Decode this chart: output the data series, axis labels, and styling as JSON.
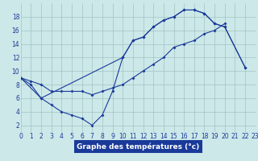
{
  "bg_color": "#cce8e8",
  "line_color": "#1a3a9a",
  "grid_color": "#99bbbb",
  "xlabel": "Graphe des températures (°c)",
  "xlabel_bg": "#1a3a9a",
  "xlabel_color": "#ffffff",
  "xlim": [
    0,
    23
  ],
  "ylim": [
    1,
    20
  ],
  "yticks": [
    2,
    4,
    6,
    8,
    10,
    12,
    14,
    16,
    18
  ],
  "xticks": [
    0,
    1,
    2,
    3,
    4,
    5,
    6,
    7,
    8,
    9,
    10,
    11,
    12,
    13,
    14,
    15,
    16,
    17,
    18,
    19,
    20,
    21,
    22,
    23
  ],
  "curve1_x": [
    0,
    1,
    2,
    3,
    4,
    5,
    6,
    7,
    8,
    9,
    10,
    11,
    12,
    13,
    14,
    15,
    16,
    17,
    18,
    19,
    20,
    22
  ],
  "curve1_y": [
    9,
    8,
    6,
    5,
    4,
    3.5,
    3,
    2,
    3.5,
    7,
    12,
    14.5,
    15,
    16.5,
    17.5,
    18,
    19,
    19,
    18.5,
    17,
    16.5,
    10.5
  ],
  "curve2_x": [
    0,
    2,
    10,
    11,
    12,
    13,
    14,
    15,
    16,
    17,
    18,
    19,
    20,
    22
  ],
  "curve2_y": [
    9,
    6,
    12,
    14.5,
    15,
    16.5,
    17.5,
    18,
    19,
    19,
    18.5,
    17,
    16.5,
    10.5
  ],
  "curve3_x": [
    0,
    1,
    2,
    3,
    4,
    5,
    6,
    7,
    8,
    9,
    10,
    11,
    12,
    13,
    14,
    15,
    16,
    17,
    18,
    19,
    20
  ],
  "curve3_y": [
    9,
    8.5,
    8,
    7,
    7,
    7,
    7,
    6.5,
    7,
    7.5,
    8,
    9,
    10,
    11,
    12,
    13.5,
    14,
    14.5,
    15.5,
    16,
    17
  ],
  "tick_fontsize": 5.5,
  "xlabel_fontsize": 6.5,
  "line_width": 0.8,
  "marker_size": 2.0
}
